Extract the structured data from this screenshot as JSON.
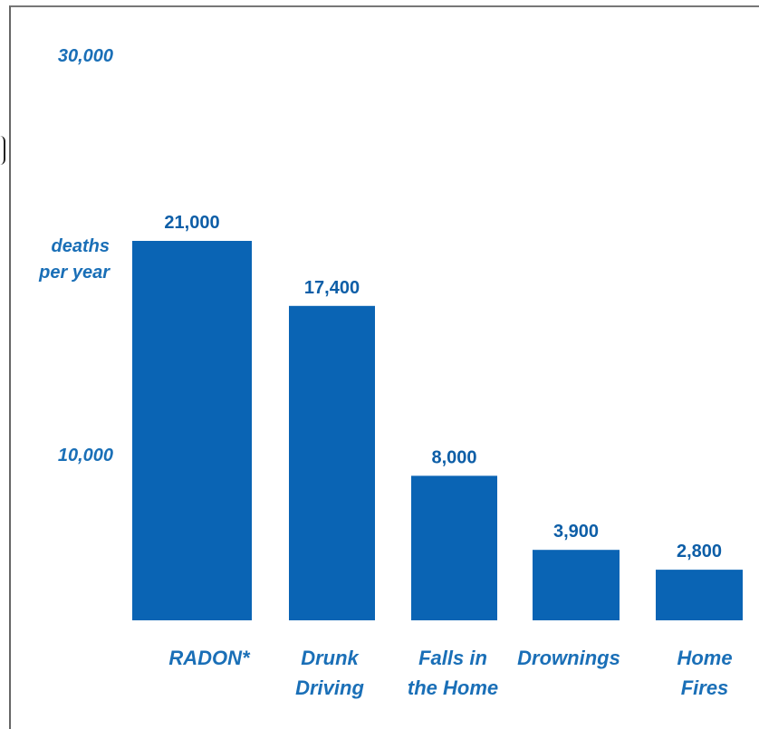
{
  "chart_data": {
    "type": "bar",
    "categories": [
      "RADON*",
      "Drunk Driving",
      "Falls in the Home",
      "Drownings",
      "Home Fires"
    ],
    "category_lines": [
      [
        "RADON*"
      ],
      [
        "Drunk",
        "Driving"
      ],
      [
        "Falls in",
        "the Home"
      ],
      [
        "Drownings"
      ],
      [
        "Home",
        "Fires"
      ]
    ],
    "values": [
      21000,
      17400,
      8000,
      3900,
      2800
    ],
    "data_labels": [
      "21,000",
      "17,400",
      "8,000",
      "3,900",
      "2,800"
    ],
    "y_ticks": [
      {
        "value": 30000,
        "label": "30,000"
      },
      {
        "value": 10000,
        "label": "10,000"
      }
    ],
    "ylabel_lines": [
      "deaths",
      "per year"
    ],
    "colors": {
      "bar": "#0a64b4",
      "text": "#1a6fb7"
    },
    "grid": false,
    "legend": "none"
  }
}
